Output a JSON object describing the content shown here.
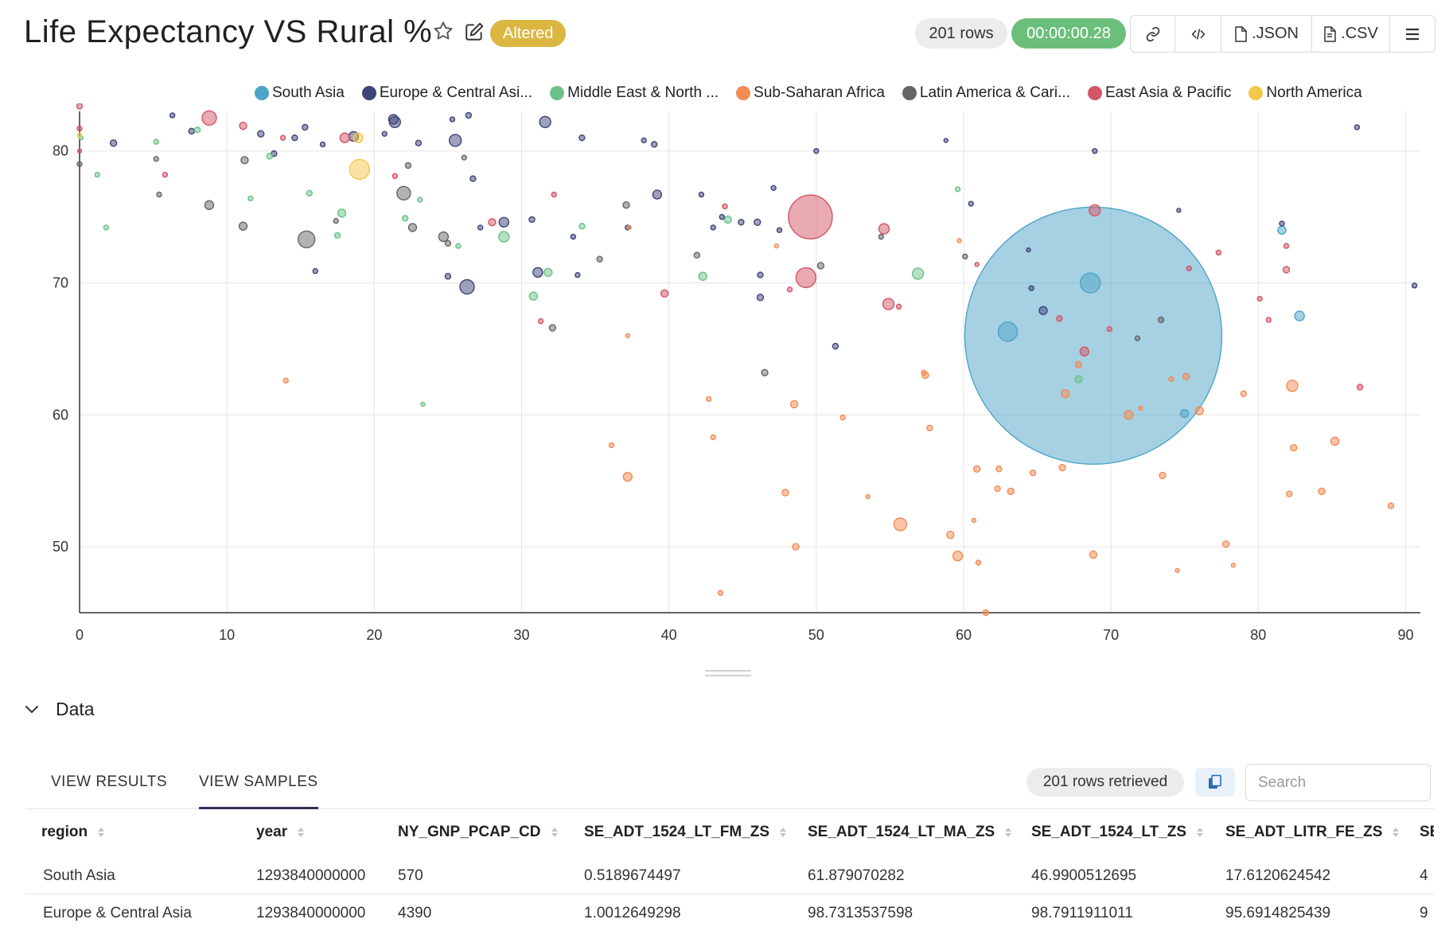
{
  "header": {
    "title": "Life Expectancy VS Rural %",
    "altered_badge": "Altered",
    "rows_count": "201 rows",
    "query_time": "00:00:00.28",
    "json_label": ".JSON",
    "csv_label": ".CSV",
    "icons": [
      "star-icon",
      "edit-icon",
      "link-icon",
      "code-icon",
      "file-icon",
      "menu-icon"
    ]
  },
  "chart_data": {
    "type": "scatter",
    "title": "Life Expectancy VS Rural %",
    "xlabel": "",
    "ylabel": "",
    "xlim": [
      0,
      91
    ],
    "ylim": [
      45,
      83
    ],
    "x_ticks": [
      0,
      10,
      20,
      30,
      40,
      50,
      60,
      70,
      80,
      90
    ],
    "y_ticks": [
      50,
      60,
      70,
      80
    ],
    "grid": true,
    "legend_position": "top",
    "series": [
      {
        "name": "South Asia",
        "label": "South Asia",
        "color": "#4ea4c8",
        "points": [
          [
            68.8,
            66.0,
            320
          ],
          [
            68.6,
            70.0,
            22
          ],
          [
            63.0,
            66.3,
            21
          ],
          [
            82.8,
            67.5,
            9
          ],
          [
            81.6,
            74.0,
            7
          ],
          [
            75.0,
            60.1,
            7
          ]
        ]
      },
      {
        "name": "Europe & Central Asia",
        "label": "Europe & Central Asi...",
        "color": "#3d4477",
        "points": [
          [
            21.3,
            82.4,
            9
          ],
          [
            21.4,
            82.2,
            11
          ],
          [
            25.5,
            80.8,
            12
          ],
          [
            31.6,
            82.2,
            11
          ],
          [
            26.3,
            69.7,
            15
          ],
          [
            28.8,
            74.6,
            9
          ],
          [
            31.1,
            70.8,
            9
          ],
          [
            18.6,
            81.1,
            9
          ],
          [
            39.2,
            76.7,
            8
          ],
          [
            2.3,
            80.6,
            5
          ],
          [
            7.6,
            81.5,
            4
          ],
          [
            12.3,
            81.3,
            5
          ],
          [
            13.2,
            79.8,
            4
          ],
          [
            14.6,
            81.0,
            4
          ],
          [
            15.3,
            81.8,
            4
          ],
          [
            16.5,
            80.5,
            3
          ],
          [
            20.7,
            81.3,
            3
          ],
          [
            23.0,
            80.6,
            4
          ],
          [
            25.3,
            82.4,
            3
          ],
          [
            26.4,
            82.7,
            4
          ],
          [
            26.7,
            77.9,
            4
          ],
          [
            27.2,
            74.2,
            3
          ],
          [
            30.7,
            74.8,
            4
          ],
          [
            33.5,
            73.5,
            3
          ],
          [
            34.1,
            81.0,
            4
          ],
          [
            37.2,
            74.2,
            3
          ],
          [
            38.3,
            80.8,
            3
          ],
          [
            39.0,
            80.5,
            4
          ],
          [
            42.2,
            76.7,
            3
          ],
          [
            43.0,
            74.2,
            3
          ],
          [
            43.6,
            75.0,
            3
          ],
          [
            44.9,
            74.6,
            4
          ],
          [
            46.0,
            74.6,
            5
          ],
          [
            46.2,
            70.6,
            4
          ],
          [
            46.2,
            68.9,
            5
          ],
          [
            47.1,
            77.2,
            3
          ],
          [
            47.5,
            74.0,
            3
          ],
          [
            50.0,
            80.0,
            3
          ],
          [
            51.3,
            65.2,
            4
          ],
          [
            58.8,
            80.8,
            2
          ],
          [
            60.5,
            76.0,
            3
          ],
          [
            64.4,
            72.5,
            2
          ],
          [
            64.6,
            69.6,
            3
          ],
          [
            65.4,
            67.9,
            7
          ],
          [
            68.9,
            80.0,
            3
          ],
          [
            74.6,
            75.5,
            2
          ],
          [
            81.6,
            74.5,
            3
          ],
          [
            86.7,
            81.8,
            3
          ],
          [
            90.6,
            69.8,
            3
          ],
          [
            6.3,
            82.7,
            3
          ],
          [
            16.0,
            70.9,
            3
          ],
          [
            25.0,
            70.5,
            4
          ],
          [
            33.8,
            70.6,
            3
          ]
        ]
      },
      {
        "name": "Middle East & North Africa",
        "label": "Middle East & North ...",
        "color": "#6cc18a",
        "points": [
          [
            56.9,
            70.7,
            11
          ],
          [
            28.8,
            73.5,
            10
          ],
          [
            31.8,
            70.8,
            7
          ],
          [
            42.3,
            70.5,
            7
          ],
          [
            17.8,
            75.3,
            7
          ],
          [
            30.8,
            69.0,
            7
          ],
          [
            67.8,
            62.7,
            6
          ],
          [
            44.0,
            74.8,
            6
          ],
          [
            8.0,
            81.6,
            4
          ],
          [
            5.2,
            80.7,
            3
          ],
          [
            1.2,
            78.2,
            3
          ],
          [
            1.8,
            74.2,
            3
          ],
          [
            11.6,
            76.4,
            3
          ],
          [
            12.9,
            79.6,
            4
          ],
          [
            15.6,
            76.8,
            4
          ],
          [
            17.5,
            73.6,
            4
          ],
          [
            22.1,
            74.9,
            4
          ],
          [
            23.1,
            76.3,
            3
          ],
          [
            25.7,
            72.8,
            3
          ],
          [
            34.1,
            74.3,
            4
          ],
          [
            59.6,
            77.1,
            3
          ],
          [
            23.3,
            60.8,
            2
          ],
          [
            0.1,
            81.0,
            2
          ]
        ]
      },
      {
        "name": "Sub-Saharan Africa",
        "label": "Sub-Saharan Africa",
        "color": "#f28b54",
        "points": [
          [
            55.7,
            51.7,
            13
          ],
          [
            59.6,
            49.3,
            9
          ],
          [
            37.2,
            55.3,
            8
          ],
          [
            82.3,
            62.2,
            11
          ],
          [
            71.2,
            60.0,
            8
          ],
          [
            76.0,
            60.3,
            7
          ],
          [
            66.9,
            61.6,
            7
          ],
          [
            85.2,
            58.0,
            7
          ],
          [
            48.5,
            60.8,
            6
          ],
          [
            57.4,
            63.0,
            5
          ],
          [
            60.9,
            55.9,
            5
          ],
          [
            62.4,
            55.9,
            4
          ],
          [
            64.7,
            55.6,
            4
          ],
          [
            66.7,
            56.0,
            5
          ],
          [
            73.5,
            55.4,
            5
          ],
          [
            82.4,
            57.5,
            5
          ],
          [
            84.3,
            54.2,
            5
          ],
          [
            82.1,
            54.0,
            4
          ],
          [
            89.0,
            53.1,
            4
          ],
          [
            62.3,
            54.4,
            4
          ],
          [
            63.2,
            54.2,
            5
          ],
          [
            67.8,
            63.8,
            5
          ],
          [
            74.1,
            62.7,
            3
          ],
          [
            79.0,
            61.6,
            4
          ],
          [
            59.1,
            50.9,
            6
          ],
          [
            68.8,
            49.4,
            6
          ],
          [
            77.8,
            50.2,
            5
          ],
          [
            47.9,
            54.1,
            5
          ],
          [
            48.6,
            50.0,
            5
          ],
          [
            57.7,
            59.0,
            4
          ],
          [
            75.1,
            62.9,
            5
          ],
          [
            51.8,
            59.8,
            3
          ],
          [
            42.7,
            61.2,
            3
          ],
          [
            43.0,
            58.3,
            3
          ],
          [
            36.1,
            57.7,
            3
          ],
          [
            37.2,
            66.0,
            2
          ],
          [
            14.0,
            62.6,
            3
          ],
          [
            43.5,
            46.5,
            3
          ],
          [
            53.5,
            53.8,
            2
          ],
          [
            60.7,
            52.0,
            2
          ],
          [
            61.0,
            48.8,
            3
          ],
          [
            61.5,
            45.0,
            4
          ],
          [
            74.5,
            48.2,
            2
          ],
          [
            78.3,
            48.6,
            2
          ],
          [
            57.3,
            63.2,
            3
          ],
          [
            59.7,
            73.2,
            2
          ],
          [
            47.3,
            72.8,
            2
          ],
          [
            72.0,
            60.5,
            2
          ],
          [
            37.3,
            74.2,
            2
          ]
        ]
      },
      {
        "name": "Latin America & Caribbean",
        "label": "Latin America & Cari...",
        "color": "#656565",
        "points": [
          [
            15.4,
            73.3,
            18
          ],
          [
            22.0,
            76.8,
            14
          ],
          [
            24.7,
            73.5,
            9
          ],
          [
            11.1,
            74.3,
            7
          ],
          [
            8.8,
            75.9,
            8
          ],
          [
            11.2,
            79.3,
            6
          ],
          [
            22.6,
            74.2,
            7
          ],
          [
            32.1,
            66.6,
            5
          ],
          [
            37.1,
            75.9,
            5
          ],
          [
            46.5,
            63.2,
            5
          ],
          [
            50.3,
            71.3,
            5
          ],
          [
            5.4,
            76.7,
            3
          ],
          [
            5.2,
            79.4,
            3
          ],
          [
            0.0,
            79.0,
            3
          ],
          [
            22.3,
            78.9,
            4
          ],
          [
            26.1,
            79.5,
            3
          ],
          [
            35.3,
            71.8,
            4
          ],
          [
            41.9,
            72.1,
            4
          ],
          [
            54.4,
            73.5,
            3
          ],
          [
            60.1,
            72.0,
            3
          ],
          [
            71.8,
            65.8,
            3
          ],
          [
            73.4,
            67.2,
            4
          ],
          [
            17.4,
            74.7,
            3
          ],
          [
            25.0,
            73.0,
            4
          ]
        ]
      },
      {
        "name": "East Asia & Pacific",
        "label": "East Asia & Pacific",
        "color": "#d35566",
        "points": [
          [
            49.6,
            75.0,
            52
          ],
          [
            49.3,
            70.4,
            22
          ],
          [
            8.8,
            82.5,
            15
          ],
          [
            54.9,
            68.4,
            11
          ],
          [
            54.6,
            74.1,
            10
          ],
          [
            68.9,
            75.5,
            11
          ],
          [
            68.2,
            64.8,
            8
          ],
          [
            18.0,
            81.0,
            9
          ],
          [
            28.0,
            74.6,
            6
          ],
          [
            0.0,
            83.4,
            4
          ],
          [
            0.0,
            81.7,
            3
          ],
          [
            0.0,
            80.0,
            2
          ],
          [
            11.1,
            81.9,
            6
          ],
          [
            13.8,
            81.0,
            3
          ],
          [
            5.8,
            78.2,
            3
          ],
          [
            21.4,
            78.1,
            3
          ],
          [
            31.3,
            67.1,
            3
          ],
          [
            32.2,
            76.7,
            3
          ],
          [
            39.7,
            69.2,
            6
          ],
          [
            43.8,
            75.8,
            3
          ],
          [
            48.2,
            69.5,
            3
          ],
          [
            55.6,
            68.2,
            3
          ],
          [
            60.9,
            71.4,
            2
          ],
          [
            66.5,
            67.3,
            4
          ],
          [
            69.9,
            66.5,
            3
          ],
          [
            75.3,
            71.1,
            3
          ],
          [
            77.3,
            72.3,
            3
          ],
          [
            80.1,
            68.8,
            3
          ],
          [
            80.7,
            67.2,
            3
          ],
          [
            81.9,
            72.8,
            3
          ],
          [
            81.9,
            71.0,
            5
          ],
          [
            86.9,
            62.1,
            4
          ]
        ]
      },
      {
        "name": "North America",
        "label": "North America",
        "color": "#f1c84b",
        "points": [
          [
            19.0,
            78.6,
            22
          ],
          [
            18.9,
            81.0,
            9
          ],
          [
            0.0,
            81.2,
            2
          ]
        ]
      }
    ]
  },
  "data_section": {
    "title": "Data",
    "tab_results": "VIEW RESULTS",
    "tab_samples": "VIEW SAMPLES",
    "rows_retrieved": "201 rows retrieved",
    "search_placeholder": "Search"
  },
  "table": {
    "columns": [
      "region",
      "year",
      "NY_GNP_PCAP_CD",
      "SE_ADT_1524_LT_FM_ZS",
      "SE_ADT_1524_LT_MA_ZS",
      "SE_ADT_1524_LT_ZS",
      "SE_ADT_LITR_FE_ZS",
      "SE"
    ],
    "rows": [
      [
        "South Asia",
        "1293840000000",
        "570",
        "0.5189674497",
        "61.879070282",
        "46.9900512695",
        "17.6120624542",
        "4"
      ],
      [
        "Europe & Central Asia",
        "1293840000000",
        "4390",
        "1.0012649298",
        "98.7313537598",
        "98.7911911011",
        "95.6914825439",
        "9"
      ]
    ]
  }
}
